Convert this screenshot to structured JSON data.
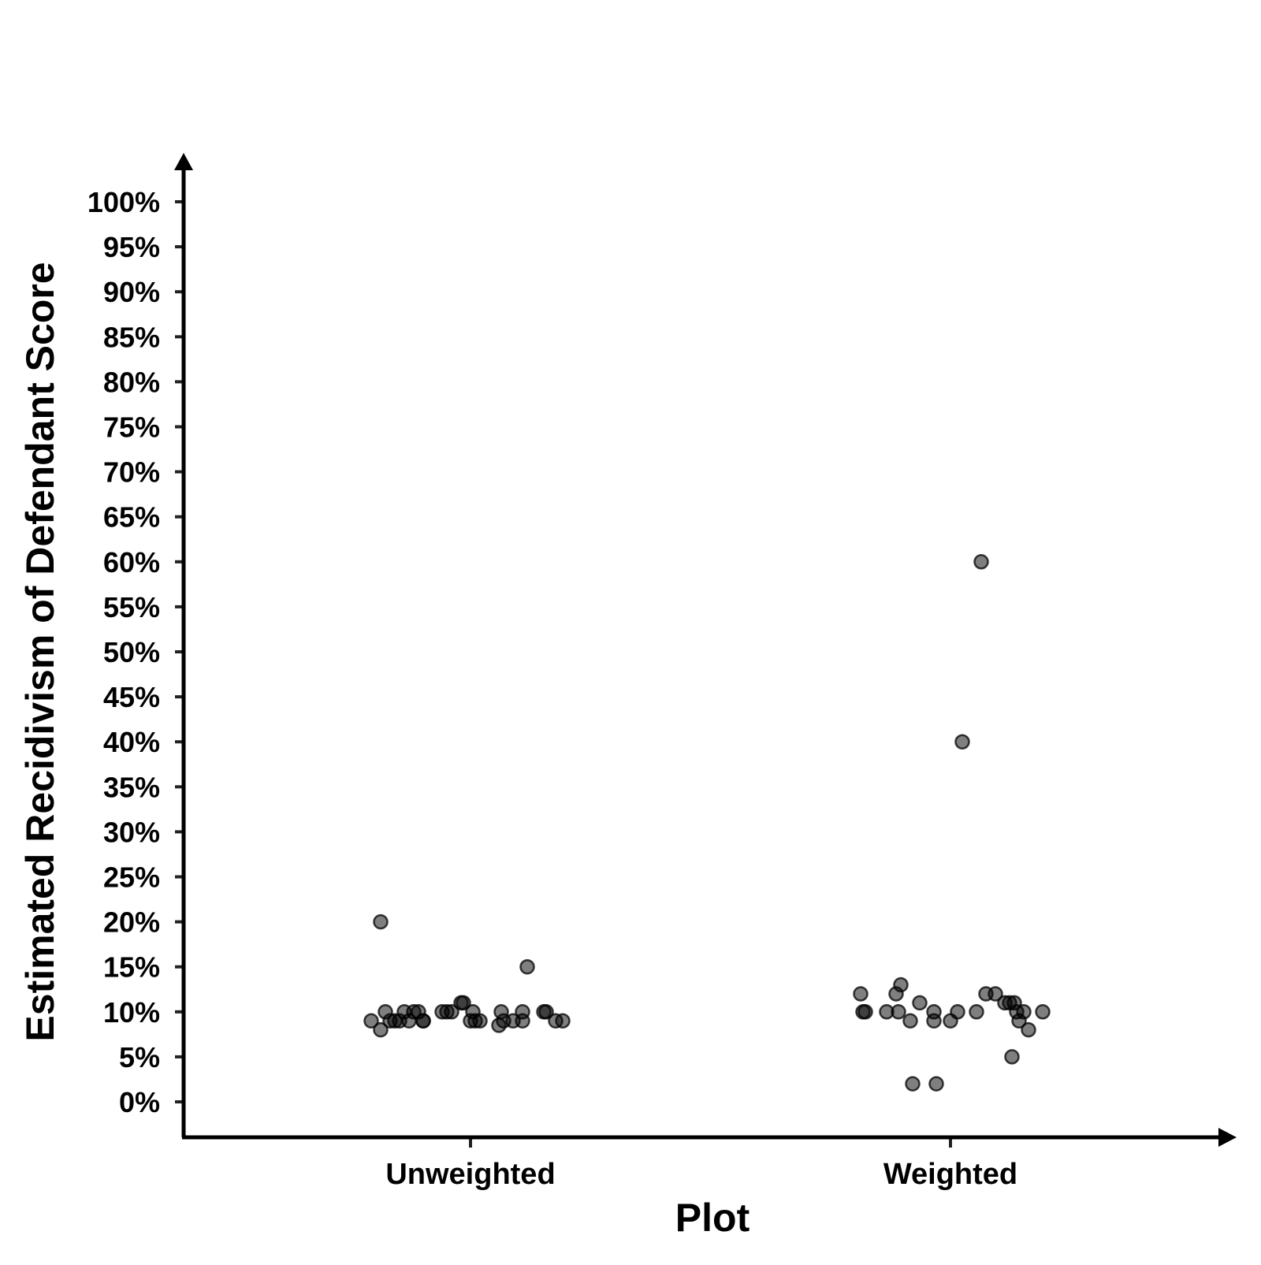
{
  "chart_data": {
    "type": "scatter",
    "title": "",
    "xlabel": "Plot",
    "ylabel": "Estimated Recidivism of Defendant Score",
    "categories": [
      "Unweighted",
      "Weighted"
    ],
    "ylim": [
      0,
      100
    ],
    "y_ticks": [
      "0%",
      "5%",
      "10%",
      "15%",
      "20%",
      "25%",
      "30%",
      "35%",
      "40%",
      "45%",
      "50%",
      "55%",
      "60%",
      "65%",
      "70%",
      "75%",
      "80%",
      "85%",
      "90%",
      "95%",
      "100%"
    ],
    "grid": false,
    "legend": "none",
    "point_color": "#000000",
    "series": [
      {
        "category": "Unweighted",
        "points": [
          {
            "jitter": -0.19,
            "y": 20
          },
          {
            "jitter": 0.12,
            "y": 15
          },
          {
            "jitter": -0.21,
            "y": 9
          },
          {
            "jitter": -0.19,
            "y": 8
          },
          {
            "jitter": -0.18,
            "y": 10
          },
          {
            "jitter": -0.17,
            "y": 9
          },
          {
            "jitter": -0.16,
            "y": 9
          },
          {
            "jitter": -0.15,
            "y": 9
          },
          {
            "jitter": -0.14,
            "y": 10
          },
          {
            "jitter": -0.13,
            "y": 9
          },
          {
            "jitter": -0.12,
            "y": 10
          },
          {
            "jitter": -0.11,
            "y": 10
          },
          {
            "jitter": -0.1,
            "y": 9
          },
          {
            "jitter": -0.1,
            "y": 9
          },
          {
            "jitter": -0.06,
            "y": 10
          },
          {
            "jitter": -0.05,
            "y": 10
          },
          {
            "jitter": -0.04,
            "y": 10
          },
          {
            "jitter": -0.02,
            "y": 11
          },
          {
            "jitter": -0.015,
            "y": 11
          },
          {
            "jitter": 0.005,
            "y": 10
          },
          {
            "jitter": 0.0,
            "y": 9
          },
          {
            "jitter": 0.01,
            "y": 9
          },
          {
            "jitter": 0.02,
            "y": 9
          },
          {
            "jitter": 0.06,
            "y": 8.5
          },
          {
            "jitter": 0.065,
            "y": 10
          },
          {
            "jitter": 0.07,
            "y": 9
          },
          {
            "jitter": 0.09,
            "y": 9
          },
          {
            "jitter": 0.11,
            "y": 9
          },
          {
            "jitter": 0.11,
            "y": 10
          },
          {
            "jitter": 0.155,
            "y": 10
          },
          {
            "jitter": 0.16,
            "y": 10
          },
          {
            "jitter": 0.18,
            "y": 9
          },
          {
            "jitter": 0.195,
            "y": 9
          }
        ]
      },
      {
        "category": "Weighted",
        "points": [
          {
            "jitter": 0.065,
            "y": 60
          },
          {
            "jitter": 0.025,
            "y": 40
          },
          {
            "jitter": -0.19,
            "y": 12
          },
          {
            "jitter": -0.185,
            "y": 10
          },
          {
            "jitter": -0.18,
            "y": 10
          },
          {
            "jitter": -0.135,
            "y": 10
          },
          {
            "jitter": -0.115,
            "y": 12
          },
          {
            "jitter": -0.11,
            "y": 10
          },
          {
            "jitter": -0.105,
            "y": 13
          },
          {
            "jitter": -0.085,
            "y": 9
          },
          {
            "jitter": -0.08,
            "y": 2
          },
          {
            "jitter": -0.065,
            "y": 11
          },
          {
            "jitter": -0.035,
            "y": 10
          },
          {
            "jitter": -0.035,
            "y": 9
          },
          {
            "jitter": -0.03,
            "y": 2
          },
          {
            "jitter": 0.0,
            "y": 9
          },
          {
            "jitter": 0.015,
            "y": 10
          },
          {
            "jitter": 0.055,
            "y": 10
          },
          {
            "jitter": 0.075,
            "y": 12
          },
          {
            "jitter": 0.095,
            "y": 12
          },
          {
            "jitter": 0.115,
            "y": 11
          },
          {
            "jitter": 0.125,
            "y": 11
          },
          {
            "jitter": 0.135,
            "y": 11
          },
          {
            "jitter": 0.13,
            "y": 5
          },
          {
            "jitter": 0.14,
            "y": 10
          },
          {
            "jitter": 0.145,
            "y": 9
          },
          {
            "jitter": 0.155,
            "y": 10
          },
          {
            "jitter": 0.165,
            "y": 8
          },
          {
            "jitter": 0.195,
            "y": 10
          }
        ]
      }
    ]
  }
}
